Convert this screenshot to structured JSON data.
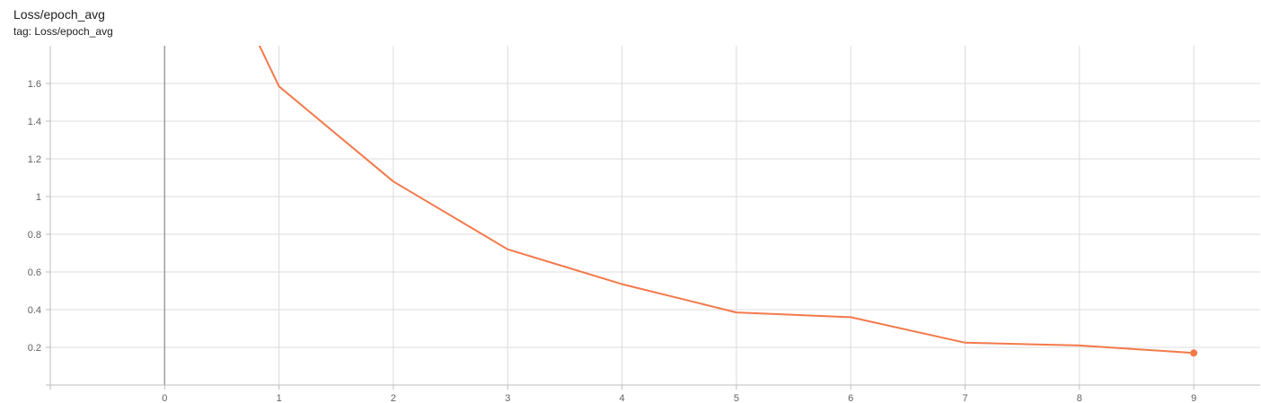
{
  "header": {
    "title": "Loss/epoch_avg",
    "subtitle": "tag: Loss/epoch_avg"
  },
  "chart_data": {
    "type": "line",
    "title": "Loss/epoch_avg",
    "subtitle": "tag: Loss/epoch_avg",
    "xlabel": "",
    "ylabel": "",
    "x_ticks": [
      0,
      1,
      2,
      3,
      4,
      5,
      6,
      7,
      8,
      9
    ],
    "y_ticks": [
      0.2,
      0.4,
      0.6,
      0.8,
      1,
      1.2,
      1.4,
      1.6
    ],
    "x_tick_labels": [
      "0",
      "1",
      "2",
      "3",
      "4",
      "5",
      "6",
      "7",
      "8",
      "9"
    ],
    "y_tick_labels": [
      "0.2",
      "0.4",
      "0.6",
      "0.8",
      "1",
      "1.2",
      "1.4",
      "1.6"
    ],
    "xlim": [
      -1,
      9.58
    ],
    "ylim": [
      0,
      1.8
    ],
    "grid": true,
    "series": [
      {
        "color": "#f4794a",
        "x": [
          0,
          1,
          2,
          3,
          4,
          5,
          6,
          7,
          8,
          9
        ],
        "y": [
          2.85,
          1.585,
          1.08,
          0.72,
          0.535,
          0.385,
          0.36,
          0.225,
          0.21,
          0.17
        ]
      }
    ],
    "colors": {
      "line": "#f4794a",
      "grid": "#dcdcdc",
      "zero_line": "#9e9e9e",
      "axis": "#bdbdbd"
    }
  }
}
